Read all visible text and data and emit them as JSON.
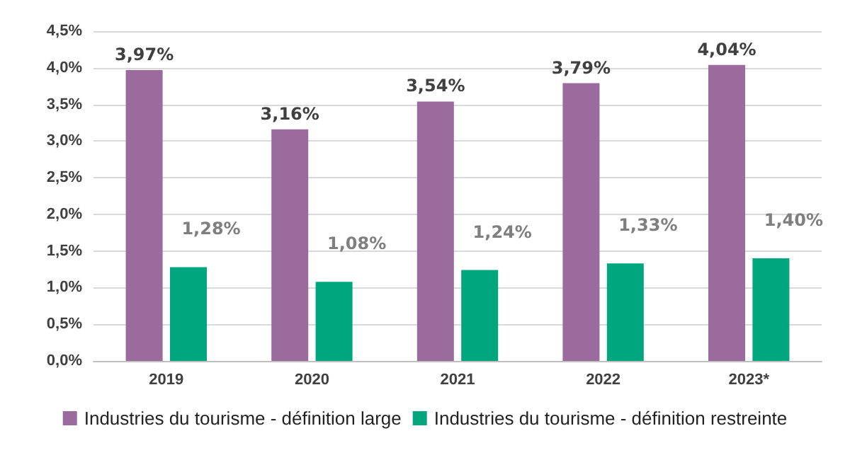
{
  "chart_data": {
    "type": "bar",
    "categories": [
      "2019",
      "2020",
      "2021",
      "2022",
      "2023*"
    ],
    "series": [
      {
        "name": "Industries du tourisme - définition large",
        "color": "#9b6b9e",
        "values": [
          3.97,
          3.16,
          3.54,
          3.79,
          4.04
        ],
        "value_labels": [
          "3,97%",
          "3,16%",
          "3,54%",
          "3,79%",
          "4,04%"
        ]
      },
      {
        "name": "Industries du tourisme - définition restreinte",
        "color": "#00a77e",
        "values": [
          1.28,
          1.08,
          1.24,
          1.33,
          1.4
        ],
        "value_labels": [
          "1,28%",
          "1,08%",
          "1,24%",
          "1,33%",
          "1,40%"
        ]
      }
    ],
    "ylim": [
      0,
      4.5
    ],
    "yticks": [
      {
        "value": 0,
        "label": "0,0%"
      },
      {
        "value": 0.5,
        "label": "0,5%"
      },
      {
        "value": 1,
        "label": "1,0%"
      },
      {
        "value": 1.5,
        "label": "1,5%"
      },
      {
        "value": 2,
        "label": "2,0%"
      },
      {
        "value": 2.5,
        "label": "2,5%"
      },
      {
        "value": 3,
        "label": "3,0%"
      },
      {
        "value": 3.5,
        "label": "3,5%"
      },
      {
        "value": 4,
        "label": "4,0%"
      },
      {
        "value": 4.5,
        "label": "4,5%"
      }
    ],
    "grid": "y",
    "legend": "bottom"
  }
}
